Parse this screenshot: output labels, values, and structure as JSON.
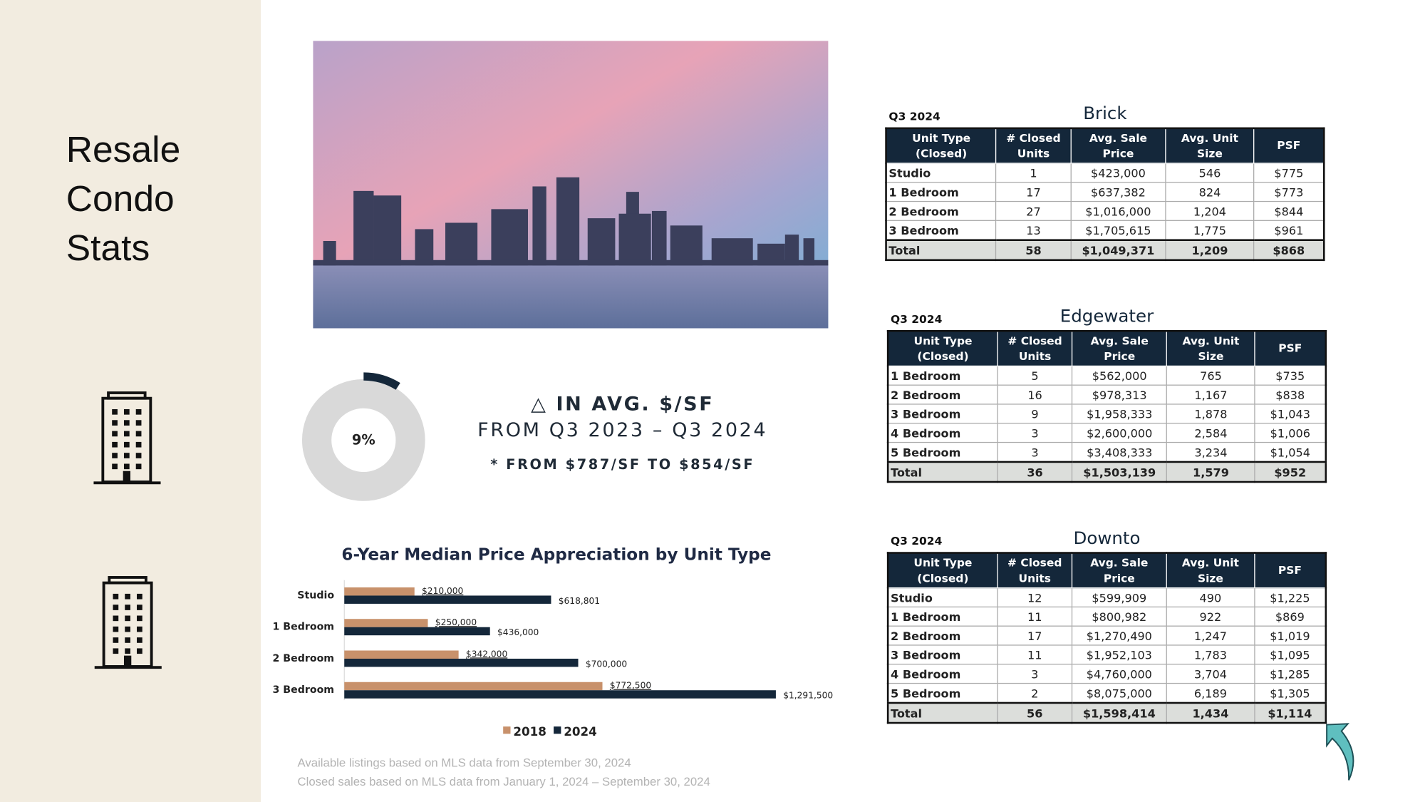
{
  "sidebar": {
    "title_lines": [
      "Resale",
      "Condo",
      "Stats"
    ]
  },
  "headline": {
    "line1": "△ IN AVG. $/SF",
    "line2": "FROM Q3 2023 – Q3 2024",
    "line3": "* FROM $787/SF TO $854/SF"
  },
  "chart_data": [
    {
      "type": "donut",
      "values": [
        9
      ],
      "value_labels": [
        "9%"
      ],
      "color": "#14273a",
      "track_color": "#d9d9d9"
    },
    {
      "type": "bar",
      "title": "6-Year Median Price Appreciation by Unit Type",
      "categories": [
        "Studio",
        "1 Bedroom",
        "2 Bedroom",
        "3 Bedroom"
      ],
      "series": [
        {
          "name": "2018",
          "color": "#c8916b",
          "values": [
            210000,
            250000,
            342000,
            772500
          ],
          "value_labels": [
            "$210,000",
            "$250,000",
            "$342,000",
            "$772,500"
          ]
        },
        {
          "name": "2024",
          "color": "#14273a",
          "values": [
            618801,
            436000,
            700000,
            1291500
          ],
          "value_labels": [
            "$618,801",
            "$436,000",
            "$700,000",
            "$1,291,500"
          ]
        }
      ]
    }
  ],
  "footnotes": [
    "Available listings based on MLS data from September 30, 2024",
    "Closed sales based on MLS data from January 1, 2024 – September 30, 2024"
  ],
  "tables": [
    {
      "period": "Q3 2024",
      "title": "Brick",
      "header": [
        "Unit Type (Closed)",
        "# Closed Units",
        "Avg. Sale Price",
        "Avg. Unit Size",
        "PSF"
      ],
      "rows": [
        [
          "Studio",
          "1",
          "$423,000",
          "546",
          "$775"
        ],
        [
          "1 Bedroom",
          "17",
          "$637,382",
          "824",
          "$773"
        ],
        [
          "2 Bedroom",
          "27",
          "$1,016,000",
          "1,204",
          "$844"
        ],
        [
          "3 Bedroom",
          "13",
          "$1,705,615",
          "1,775",
          "$961"
        ],
        [
          "Total",
          "58",
          "$1,049,371",
          "1,209",
          "$868"
        ]
      ]
    },
    {
      "period": "Q3 2024",
      "title": "Edgewater",
      "header": [
        "Unit Type (Closed)",
        "# Closed Units",
        "Avg. Sale Price",
        "Avg. Unit Size",
        "PSF"
      ],
      "rows": [
        [
          "1 Bedroom",
          "5",
          "$562,000",
          "765",
          "$735"
        ],
        [
          "2 Bedroom",
          "16",
          "$978,313",
          "1,167",
          "$838"
        ],
        [
          "3 Bedroom",
          "9",
          "$1,958,333",
          "1,878",
          "$1,043"
        ],
        [
          "4 Bedroom",
          "3",
          "$2,600,000",
          "2,584",
          "$1,006"
        ],
        [
          "5 Bedroom",
          "3",
          "$3,408,333",
          "3,234",
          "$1,054"
        ],
        [
          "Total",
          "36",
          "$1,503,139",
          "1,579",
          "$952"
        ]
      ]
    },
    {
      "period": "Q3 2024",
      "title": "Downto",
      "header": [
        "Unit Type (Closed)",
        "# Closed Units",
        "Avg. Sale Price",
        "Avg. Unit Size",
        "PSF"
      ],
      "rows": [
        [
          "Studio",
          "12",
          "$599,909",
          "490",
          "$1,225"
        ],
        [
          "1 Bedroom",
          "11",
          "$800,982",
          "922",
          "$869"
        ],
        [
          "2 Bedroom",
          "17",
          "$1,270,490",
          "1,247",
          "$1,019"
        ],
        [
          "3 Bedroom",
          "11",
          "$1,952,103",
          "1,783",
          "$1,095"
        ],
        [
          "4 Bedroom",
          "3",
          "$4,760,000",
          "3,704",
          "$1,285"
        ],
        [
          "5 Bedroom",
          "2",
          "$8,075,000",
          "6,189",
          "$1,305"
        ],
        [
          "Total",
          "56",
          "$1,598,414",
          "1,434",
          "$1,114"
        ]
      ]
    }
  ]
}
